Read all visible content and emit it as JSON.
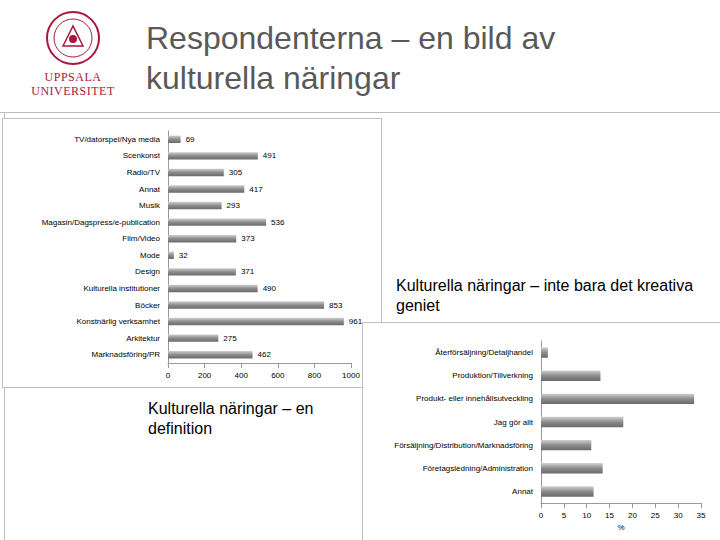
{
  "slide": {
    "logo": [
      "UPPSALA",
      "UNIVERSITET"
    ],
    "title": [
      "Respondenterna – en bild av",
      "kulturella näringar"
    ],
    "captions": [
      "Kulturella näringar – inte bara det kreativa geniet",
      "Kulturella näringar – en definition"
    ]
  },
  "chart_data": [
    {
      "type": "bar",
      "orientation": "horizontal",
      "data_labels": true,
      "grid": false,
      "color": "#8c8c8c",
      "categories": [
        "TV/datorspel/Nya media",
        "Scenkonst",
        "Radio/TV",
        "Annat",
        "Musik",
        "Magasin/Dagspress/e-publication",
        "Film/Video",
        "Mode",
        "Design",
        "Kulturella institutioner",
        "Böcker",
        "Konstnärlig verksamhet",
        "Arkitektur",
        "Marknadsföring/PR"
      ],
      "values": [
        69,
        491,
        305,
        417,
        293,
        536,
        373,
        32,
        371,
        490,
        853,
        961,
        275,
        462
      ],
      "xlim": [
        0,
        1000
      ],
      "xticks": [
        0,
        200,
        400,
        600,
        800,
        1000
      ]
    },
    {
      "type": "bar",
      "orientation": "horizontal",
      "data_labels": false,
      "grid": false,
      "color": "#8c8c8c",
      "categories": [
        "Återförsäljning/Detaljhandel",
        "Produktion/Tillverkning",
        "Produkt- eller innehållsutveckling",
        "Jag gör allt",
        "Försäljning/Distribution/Marknadsföring",
        "Företagsledning/Administration",
        "Annat"
      ],
      "values": [
        1.5,
        13,
        33.5,
        18,
        11,
        13.5,
        11.5
      ],
      "xlabel": "%",
      "xlim": [
        0,
        35
      ],
      "xticks": [
        0,
        5,
        10,
        15,
        20,
        25,
        30,
        35
      ]
    }
  ]
}
